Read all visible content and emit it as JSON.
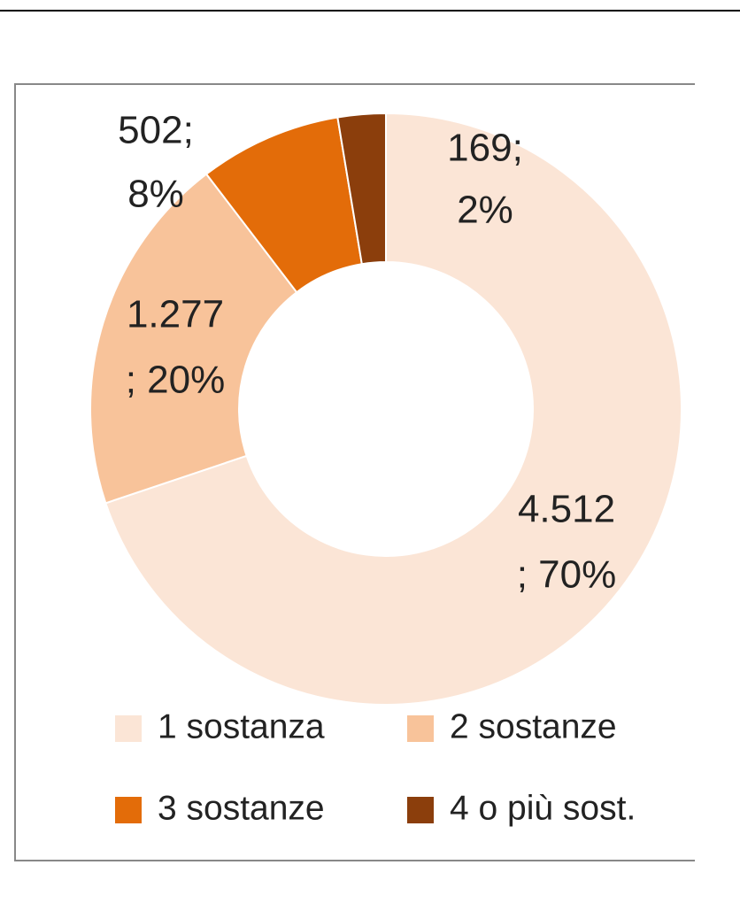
{
  "chart_data": {
    "type": "donut",
    "categories": [
      "1 sostanza",
      "2 sostanze",
      "3 sostanze",
      "4 o più sost."
    ],
    "values": [
      4512,
      1277,
      502,
      169
    ],
    "value_labels": [
      [
        "4.512",
        "; 70%"
      ],
      [
        "1.277",
        "; 20%"
      ],
      [
        "502;",
        "8%"
      ],
      [
        "169;",
        "2%"
      ]
    ],
    "colors": [
      "#fbe5d6",
      "#f8c39a",
      "#e36c09",
      "#8b3e0c"
    ],
    "legend": "bottom"
  }
}
